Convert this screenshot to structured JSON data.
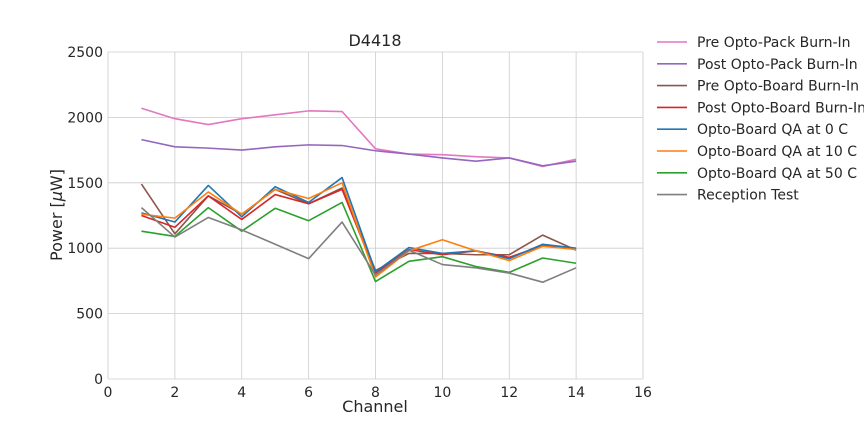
{
  "chart_data": {
    "type": "line",
    "title": "D4418",
    "xlabel": "Channel",
    "ylabel_prefix": "Power [",
    "ylabel_mu": "μ",
    "ylabel_suffix": "W]",
    "xlim": [
      0,
      16
    ],
    "ylim": [
      0,
      2500
    ],
    "xticks": [
      0,
      2,
      4,
      6,
      8,
      10,
      12,
      14,
      16
    ],
    "yticks": [
      0,
      500,
      1000,
      1500,
      2000,
      2500
    ],
    "grid": true,
    "legend_position": "outside-right",
    "x": [
      1,
      2,
      3,
      4,
      5,
      6,
      7,
      8,
      9,
      10,
      11,
      12,
      13,
      14
    ],
    "series": [
      {
        "name": "Pre Opto-Pack Burn-In",
        "color": "#e377c2",
        "values": [
          2070,
          1990,
          1945,
          1990,
          2020,
          2050,
          2045,
          1760,
          1720,
          1715,
          1700,
          1690,
          1625,
          1680
        ]
      },
      {
        "name": "Post Opto-Pack Burn-In",
        "color": "#9467bd",
        "values": [
          1830,
          1775,
          1765,
          1750,
          1775,
          1790,
          1785,
          1745,
          1720,
          1690,
          1665,
          1690,
          1630,
          1665
        ]
      },
      {
        "name": "Pre Opto-Board Burn-In",
        "color": "#8c564b",
        "values": [
          1490,
          1110,
          1400,
          1260,
          1450,
          1340,
          1460,
          830,
          960,
          960,
          950,
          950,
          1100,
          985
        ]
      },
      {
        "name": "Post Opto-Board Burn-In",
        "color": "#d62728",
        "values": [
          1250,
          1160,
          1400,
          1220,
          1410,
          1340,
          1450,
          810,
          990,
          950,
          980,
          930,
          1020,
          995
        ]
      },
      {
        "name": "Opto-Board QA at 0 C",
        "color": "#1f77b4",
        "values": [
          1270,
          1200,
          1480,
          1240,
          1470,
          1350,
          1540,
          820,
          1005,
          960,
          980,
          920,
          1030,
          1000
        ]
      },
      {
        "name": "Opto-Board QA at 10 C",
        "color": "#ff7f0e",
        "values": [
          1260,
          1230,
          1430,
          1260,
          1450,
          1380,
          1500,
          780,
          980,
          1065,
          980,
          905,
          1015,
          990
        ]
      },
      {
        "name": "Opto-Board QA at 50 C",
        "color": "#2ca02c",
        "values": [
          1130,
          1090,
          1310,
          1130,
          1305,
          1210,
          1350,
          745,
          900,
          935,
          860,
          815,
          925,
          885
        ]
      },
      {
        "name": "Reception Test",
        "color": "#7f7f7f",
        "values": [
          1310,
          1085,
          1235,
          1140,
          1030,
          920,
          1200,
          795,
          985,
          875,
          850,
          810,
          740,
          850
        ]
      }
    ]
  }
}
